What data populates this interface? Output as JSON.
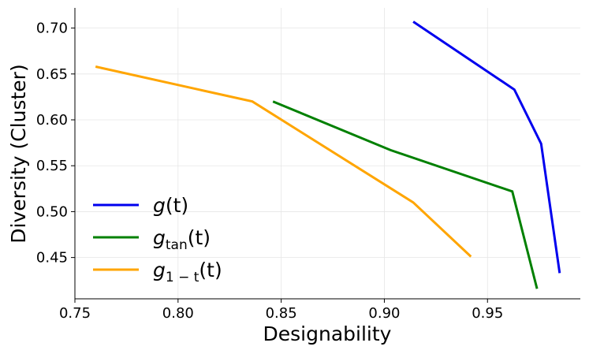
{
  "chart_data": {
    "type": "line",
    "xlabel": "Designability",
    "ylabel": "Diversity (Cluster)",
    "xlim": [
      0.75,
      0.995
    ],
    "ylim": [
      0.405,
      0.722
    ],
    "xticks": [
      0.75,
      0.8,
      0.85,
      0.9,
      0.95
    ],
    "xtick_labels": [
      "0.75",
      "0.80",
      "0.85",
      "0.90",
      "0.95"
    ],
    "yticks": [
      0.45,
      0.5,
      0.55,
      0.6,
      0.65,
      0.7
    ],
    "ytick_labels": [
      "0.45",
      "0.50",
      "0.55",
      "0.60",
      "0.65",
      "0.70"
    ],
    "grid": true,
    "legend_position": "lower-left",
    "series": [
      {
        "name": "g(t)",
        "legend": {
          "base": "g",
          "sub": "",
          "arg": "(t)"
        },
        "color": "#0000ee",
        "x": [
          0.914,
          0.963,
          0.976,
          0.985
        ],
        "y": [
          0.707,
          0.633,
          0.574,
          0.433
        ]
      },
      {
        "name": "g_tan(t)",
        "legend": {
          "base": "g",
          "sub": "tan",
          "arg": "(t)"
        },
        "color": "#008000",
        "x": [
          0.846,
          0.903,
          0.962,
          0.974
        ],
        "y": [
          0.62,
          0.567,
          0.522,
          0.416
        ]
      },
      {
        "name": "g_1-t(t)",
        "legend": {
          "base": "g",
          "sub": "1 − t",
          "arg": "(t)"
        },
        "color": "#ffa500",
        "x": [
          0.76,
          0.836,
          0.914,
          0.942
        ],
        "y": [
          0.658,
          0.62,
          0.51,
          0.451
        ]
      }
    ]
  }
}
